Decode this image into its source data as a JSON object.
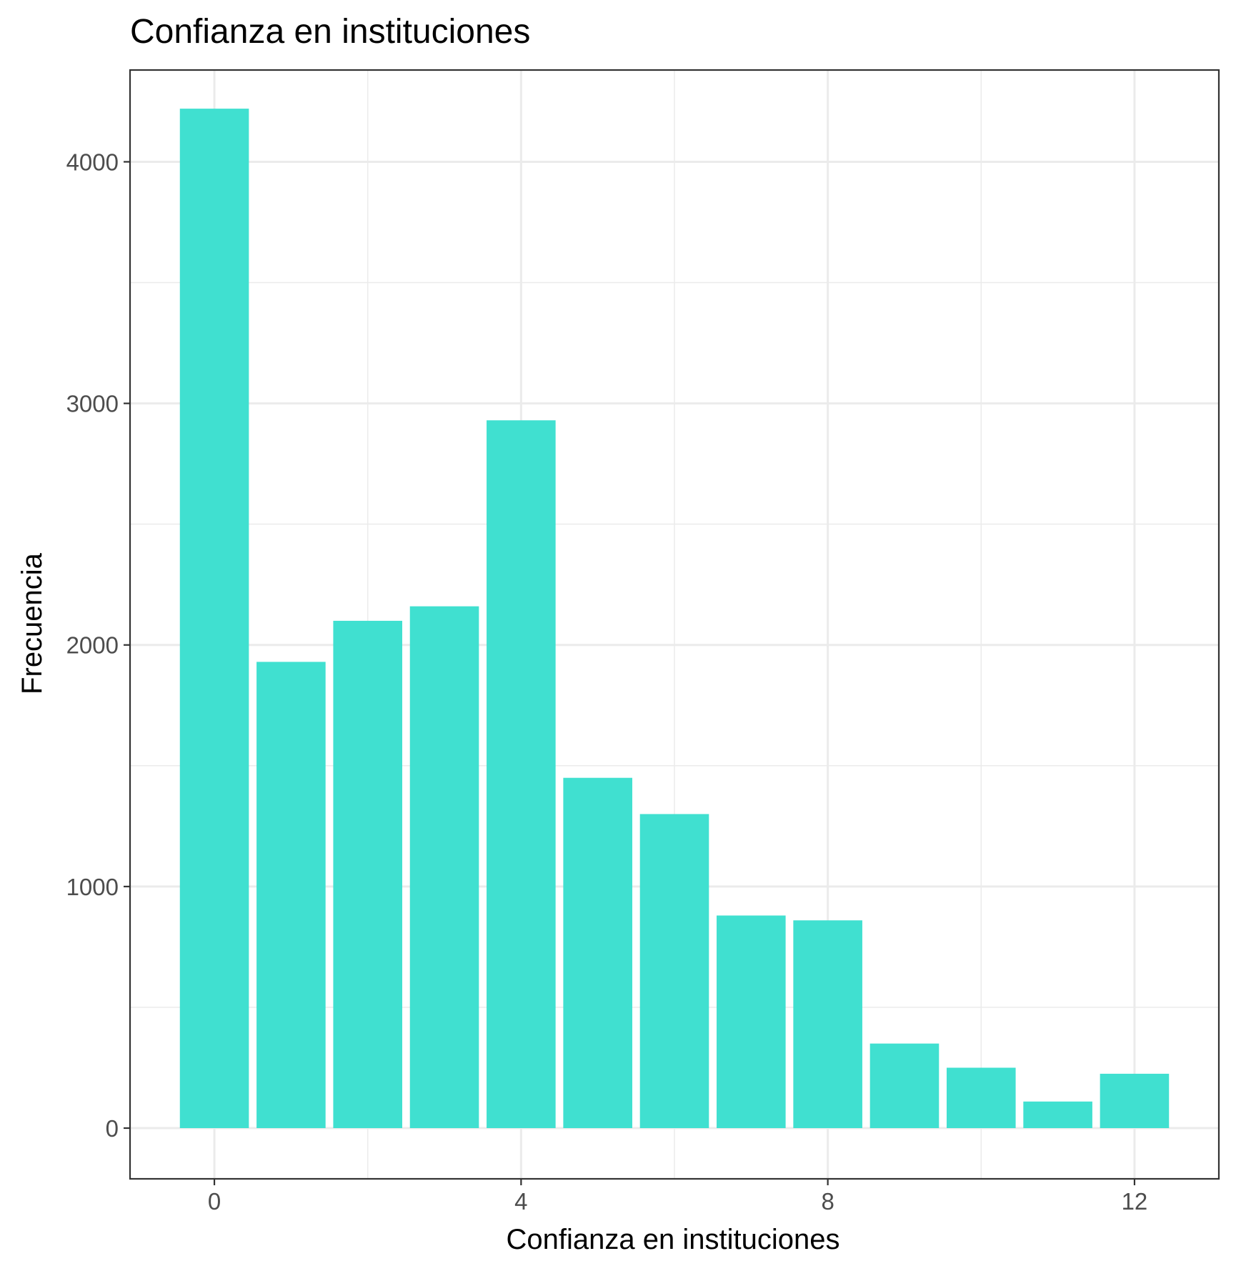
{
  "chart_data": {
    "type": "bar",
    "title": "Confianza en instituciones",
    "xlabel": "Confianza en instituciones",
    "ylabel": "Frecuencia",
    "x": [
      0,
      1,
      2,
      3,
      4,
      5,
      6,
      7,
      8,
      9,
      10,
      11,
      12
    ],
    "values": [
      4220,
      1930,
      2100,
      2160,
      2930,
      1450,
      1300,
      880,
      860,
      350,
      250,
      110,
      225
    ],
    "xlim": [
      -1.1,
      13.1
    ],
    "ylim": [
      -210,
      4380
    ],
    "x_ticks": [
      0,
      4,
      8,
      12
    ],
    "x_tick_labels": [
      "0",
      "4",
      "8",
      "12"
    ],
    "y_ticks": [
      0,
      1000,
      2000,
      3000,
      4000
    ],
    "y_tick_labels": [
      "0",
      "1000",
      "2000",
      "3000",
      "4000"
    ],
    "grid": true,
    "colors": {
      "bar": "#40E0D0",
      "grid": "#ebebeb",
      "border": "#333333",
      "axis_text": "#4d4d4d"
    }
  }
}
